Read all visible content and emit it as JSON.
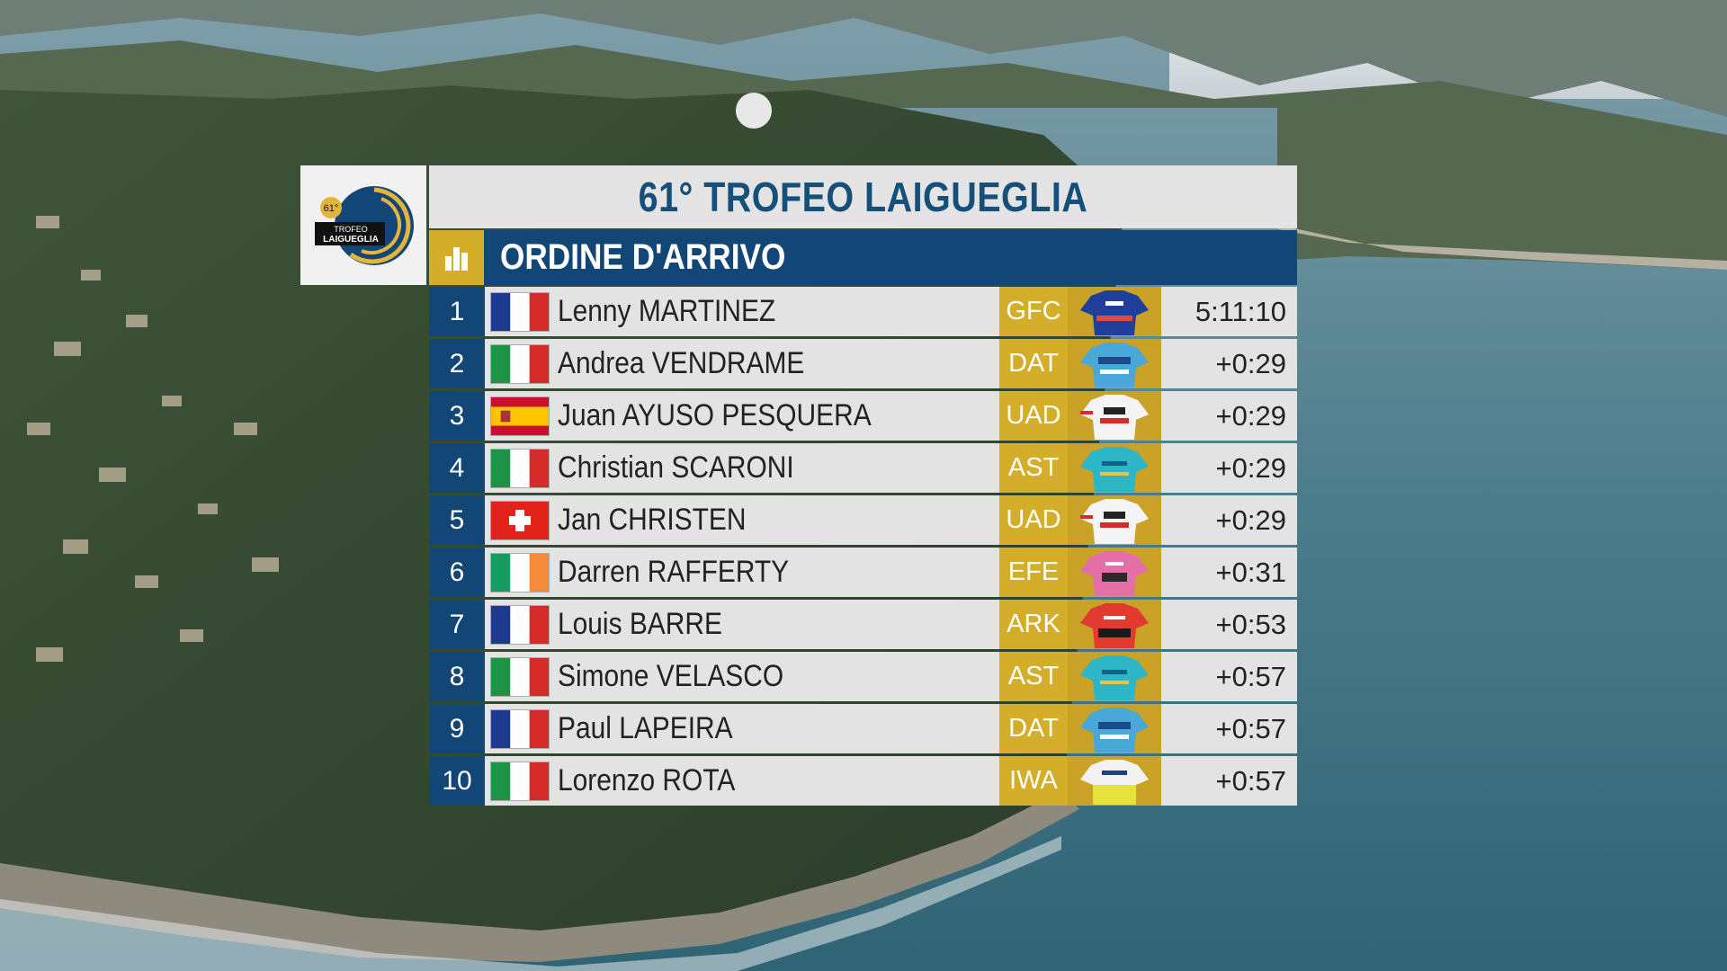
{
  "race": {
    "title": "61° TROFEO LAIGUEGLIA",
    "logo": {
      "edition": "61°",
      "line1": "TROFEO",
      "line2": "LAIGUEGLIA"
    }
  },
  "header": {
    "label": "ORDINE D'ARRIVO",
    "icon": "bar-chart-icon"
  },
  "colors": {
    "navy": "#114676",
    "gold": "#d4ae2b",
    "title_blue": "#15507b",
    "row_bg": "#e3e3e3"
  },
  "results": [
    {
      "pos": "1",
      "flag": "france",
      "name": "Lenny MARTINEZ",
      "team": "GFC",
      "jersey": "groupama-fdj-jersey",
      "time": "5:11:10"
    },
    {
      "pos": "2",
      "flag": "italy",
      "name": "Andrea VENDRAME",
      "team": "DAT",
      "jersey": "decathlon-jersey",
      "time": "+0:29"
    },
    {
      "pos": "3",
      "flag": "spain",
      "name": "Juan AYUSO PESQUERA",
      "team": "UAD",
      "jersey": "uae-emirates-jersey",
      "time": "+0:29"
    },
    {
      "pos": "4",
      "flag": "italy",
      "name": "Christian SCARONI",
      "team": "AST",
      "jersey": "astana-jersey",
      "time": "+0:29"
    },
    {
      "pos": "5",
      "flag": "switzerland",
      "name": "Jan CHRISTEN",
      "team": "UAD",
      "jersey": "uae-emirates-jersey",
      "time": "+0:29"
    },
    {
      "pos": "6",
      "flag": "ireland",
      "name": "Darren RAFFERTY",
      "team": "EFE",
      "jersey": "ef-education-jersey",
      "time": "+0:31"
    },
    {
      "pos": "7",
      "flag": "france",
      "name": "Louis BARRE",
      "team": "ARK",
      "jersey": "arkea-jersey",
      "time": "+0:53"
    },
    {
      "pos": "8",
      "flag": "italy",
      "name": "Simone VELASCO",
      "team": "AST",
      "jersey": "astana-jersey",
      "time": "+0:57"
    },
    {
      "pos": "9",
      "flag": "france",
      "name": "Paul LAPEIRA",
      "team": "DAT",
      "jersey": "decathlon-jersey",
      "time": "+0:57"
    },
    {
      "pos": "10",
      "flag": "italy",
      "name": "Lorenzo ROTA",
      "team": "IWA",
      "jersey": "intermarche-wanty-jersey",
      "time": "+0:57"
    }
  ]
}
